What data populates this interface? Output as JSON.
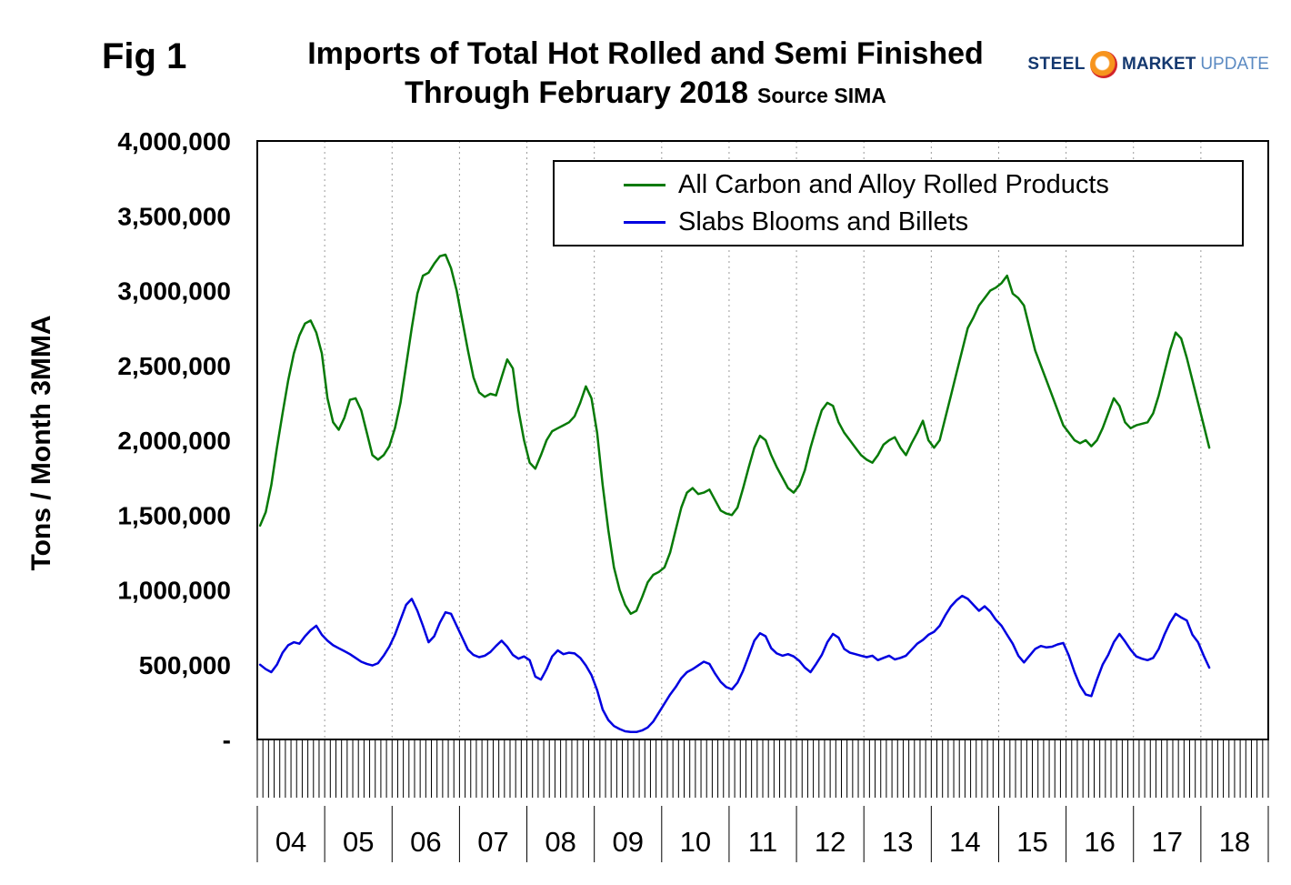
{
  "header": {
    "fig_label": "Fig 1",
    "title_line1": "Imports of Total Hot Rolled and Semi Finished",
    "title_line2": "Through February 2018",
    "title_source": "Source SIMA",
    "logo": {
      "steel": "STEEL",
      "market": "MARKET",
      "update": "UPDATE"
    }
  },
  "chart_data": {
    "type": "line",
    "title": "Imports of Total Hot Rolled and Semi Finished Through February 2018",
    "source": "SIMA",
    "xlabel": "",
    "ylabel": "Tons / Month 3MMA",
    "ylim": [
      0,
      4000000
    ],
    "y_tick_interval": 500000,
    "y_tick_labels": [
      "-",
      "500,000",
      "1,000,000",
      "1,500,000",
      "2,000,000",
      "2,500,000",
      "3,000,000",
      "3,500,000",
      "4,000,000"
    ],
    "x_years": [
      "04",
      "05",
      "06",
      "07",
      "08",
      "09",
      "10",
      "11",
      "12",
      "13",
      "14",
      "15",
      "16",
      "17",
      "18"
    ],
    "frequency": "monthly",
    "start": "2004-01",
    "end": "2018-02",
    "grid": "vertical-dotted",
    "legend_position": "top-inside",
    "series": [
      {
        "name": "All Carbon and Alloy Rolled Products",
        "color": "#077a07",
        "values": [
          1430000,
          1520000,
          1700000,
          1950000,
          2180000,
          2400000,
          2580000,
          2700000,
          2780000,
          2800000,
          2720000,
          2580000,
          2280000,
          2120000,
          2070000,
          2150000,
          2270000,
          2280000,
          2200000,
          2050000,
          1900000,
          1870000,
          1900000,
          1960000,
          2080000,
          2250000,
          2500000,
          2750000,
          2980000,
          3100000,
          3120000,
          3180000,
          3230000,
          3240000,
          3150000,
          3000000,
          2800000,
          2600000,
          2420000,
          2320000,
          2290000,
          2310000,
          2300000,
          2420000,
          2540000,
          2480000,
          2200000,
          2000000,
          1850000,
          1810000,
          1900000,
          2000000,
          2060000,
          2080000,
          2100000,
          2120000,
          2160000,
          2250000,
          2360000,
          2280000,
          2050000,
          1700000,
          1400000,
          1150000,
          1000000,
          900000,
          840000,
          860000,
          950000,
          1050000,
          1100000,
          1120000,
          1150000,
          1250000,
          1400000,
          1550000,
          1650000,
          1680000,
          1640000,
          1650000,
          1670000,
          1600000,
          1530000,
          1510000,
          1500000,
          1550000,
          1680000,
          1820000,
          1950000,
          2030000,
          2000000,
          1900000,
          1820000,
          1750000,
          1680000,
          1650000,
          1700000,
          1800000,
          1950000,
          2080000,
          2200000,
          2250000,
          2230000,
          2120000,
          2050000,
          2000000,
          1950000,
          1900000,
          1870000,
          1850000,
          1900000,
          1970000,
          2000000,
          2020000,
          1950000,
          1900000,
          1980000,
          2050000,
          2130000,
          2000000,
          1950000,
          2000000,
          2150000,
          2300000,
          2450000,
          2600000,
          2750000,
          2820000,
          2900000,
          2950000,
          3000000,
          3020000,
          3050000,
          3100000,
          2980000,
          2950000,
          2900000,
          2750000,
          2600000,
          2500000,
          2400000,
          2300000,
          2200000,
          2100000,
          2050000,
          2000000,
          1980000,
          2000000,
          1960000,
          2000000,
          2080000,
          2180000,
          2280000,
          2230000,
          2120000,
          2080000,
          2100000,
          2110000,
          2120000,
          2180000,
          2300000,
          2450000,
          2600000,
          2720000,
          2680000,
          2550000,
          2400000,
          2250000,
          2100000,
          1950000
        ]
      },
      {
        "name": "Slabs Blooms and Billets",
        "color": "#0000e0",
        "values": [
          500000,
          470000,
          450000,
          500000,
          580000,
          630000,
          650000,
          640000,
          690000,
          730000,
          760000,
          700000,
          660000,
          630000,
          610000,
          590000,
          570000,
          545000,
          520000,
          505000,
          495000,
          510000,
          560000,
          620000,
          700000,
          800000,
          900000,
          940000,
          860000,
          760000,
          650000,
          690000,
          780000,
          850000,
          840000,
          760000,
          680000,
          600000,
          565000,
          550000,
          560000,
          585000,
          625000,
          660000,
          620000,
          565000,
          540000,
          555000,
          530000,
          420000,
          400000,
          470000,
          555000,
          595000,
          570000,
          580000,
          575000,
          545000,
          495000,
          430000,
          330000,
          200000,
          130000,
          90000,
          70000,
          55000,
          50000,
          50000,
          60000,
          80000,
          120000,
          180000,
          240000,
          300000,
          350000,
          410000,
          450000,
          470000,
          495000,
          520000,
          505000,
          440000,
          385000,
          350000,
          335000,
          380000,
          460000,
          560000,
          660000,
          710000,
          690000,
          610000,
          575000,
          560000,
          570000,
          555000,
          525000,
          480000,
          450000,
          505000,
          565000,
          650000,
          705000,
          680000,
          605000,
          580000,
          570000,
          560000,
          550000,
          560000,
          530000,
          545000,
          560000,
          535000,
          545000,
          560000,
          600000,
          640000,
          665000,
          700000,
          720000,
          760000,
          830000,
          890000,
          930000,
          960000,
          940000,
          900000,
          860000,
          890000,
          855000,
          800000,
          760000,
          700000,
          640000,
          560000,
          515000,
          560000,
          605000,
          625000,
          615000,
          620000,
          635000,
          645000,
          560000,
          450000,
          360000,
          300000,
          290000,
          400000,
          500000,
          565000,
          650000,
          705000,
          655000,
          600000,
          555000,
          540000,
          530000,
          545000,
          605000,
          700000,
          780000,
          840000,
          815000,
          795000,
          700000,
          650000,
          560000,
          480000
        ]
      }
    ]
  }
}
